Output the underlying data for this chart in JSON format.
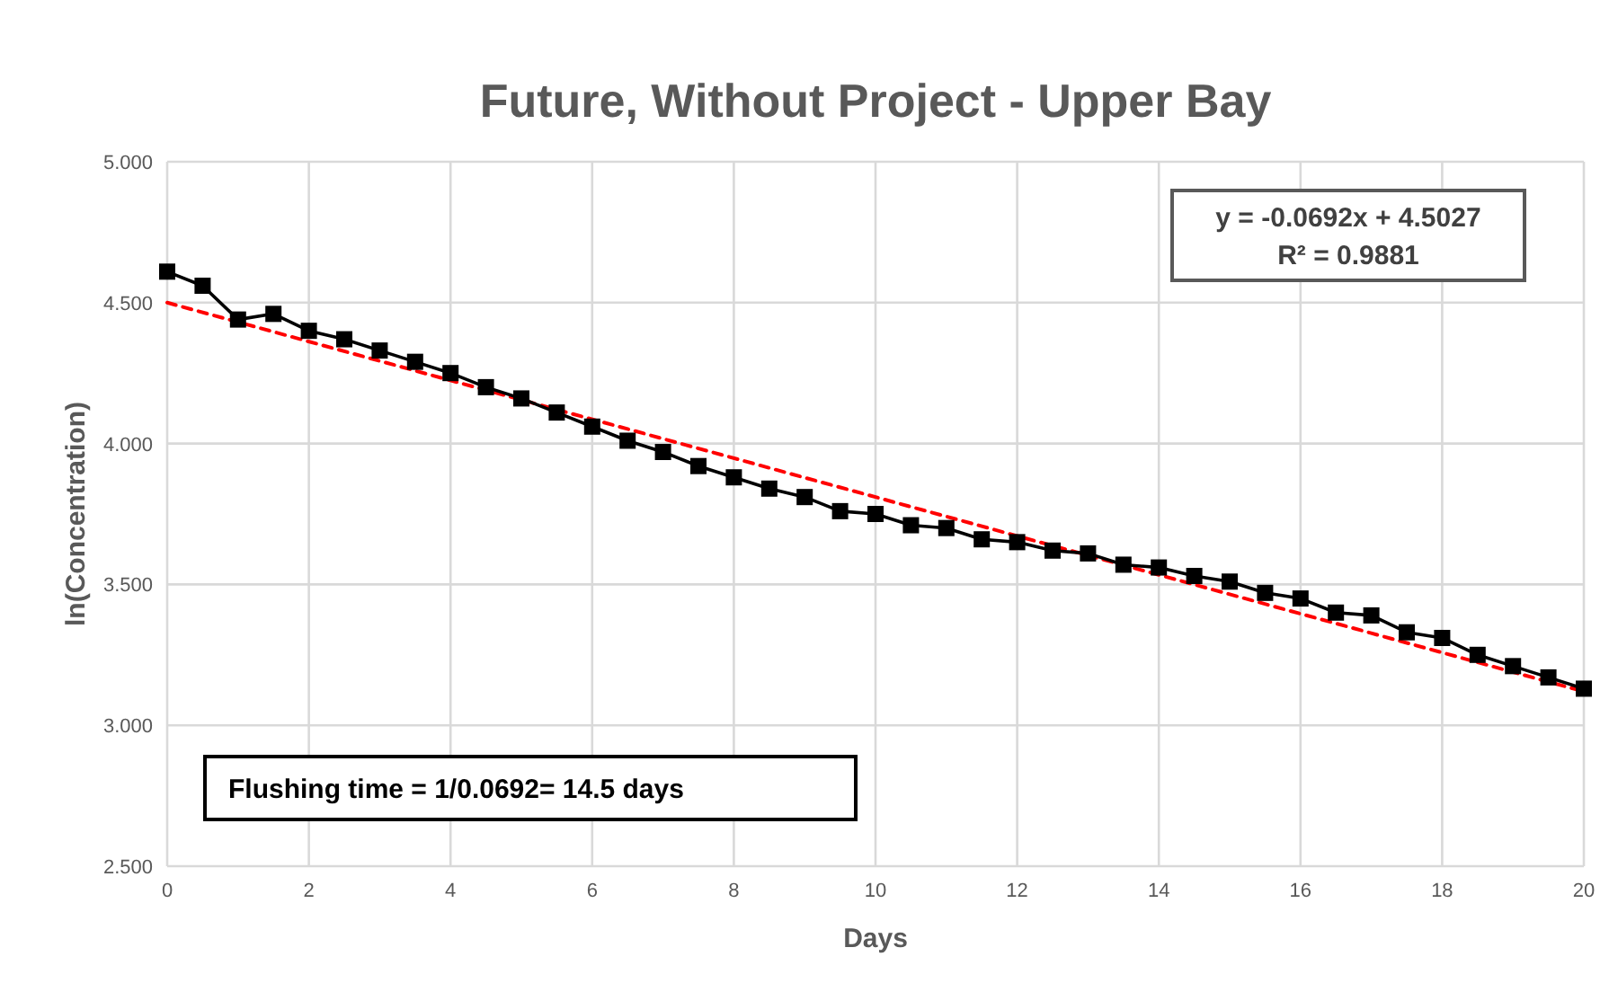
{
  "chart_data": {
    "type": "line",
    "title": "Future, Without Project - Upper Bay",
    "xlabel": "Days",
    "ylabel": "ln(Concentration)",
    "xlim": [
      0,
      20
    ],
    "xticks": [
      0,
      2,
      4,
      6,
      8,
      10,
      12,
      14,
      16,
      18,
      20
    ],
    "ylim": [
      2.5,
      5
    ],
    "yticks": [
      {
        "value": 2.5,
        "label": "2.500"
      },
      {
        "value": 3,
        "label": "3.000"
      },
      {
        "value": 3.5,
        "label": "3.500"
      },
      {
        "value": 4,
        "label": "4.000"
      },
      {
        "value": 4.5,
        "label": "4.500"
      },
      {
        "value": 5,
        "label": "5.000"
      }
    ],
    "grid": true,
    "series": [
      {
        "color": "#000000",
        "marker": "square",
        "line_style": "solid",
        "x": [
          0,
          0.5,
          1,
          1.5,
          2,
          2.5,
          3,
          3.5,
          4,
          4.5,
          5,
          5.5,
          6,
          6.5,
          7,
          7.5,
          8,
          8.5,
          9,
          9.5,
          10,
          10.5,
          11,
          11.5,
          12,
          12.5,
          13,
          13.5,
          14,
          14.5,
          15,
          15.5,
          16,
          16.5,
          17,
          17.5,
          18,
          18.5,
          19,
          19.5,
          20
        ],
        "values": [
          4.61,
          4.56,
          4.44,
          4.46,
          4.4,
          4.37,
          4.33,
          4.29,
          4.25,
          4.2,
          4.16,
          4.11,
          4.06,
          4.01,
          3.97,
          3.92,
          3.88,
          3.84,
          3.81,
          3.76,
          3.75,
          3.71,
          3.7,
          3.66,
          3.65,
          3.62,
          3.61,
          3.57,
          3.56,
          3.53,
          3.51,
          3.47,
          3.45,
          3.4,
          3.39,
          3.33,
          3.31,
          3.25,
          3.21,
          3.17,
          3.13
        ]
      },
      {
        "color": "#ff0000",
        "marker": "none",
        "line_style": "dashed",
        "x": [
          0,
          20
        ],
        "values": [
          4.5,
          3.12
        ]
      }
    ],
    "annotations": [
      "y = -0.0692x + 4.5027",
      "R² = 0.9881",
      "Flushing time = 1/0.0692= 14.5 days"
    ]
  }
}
